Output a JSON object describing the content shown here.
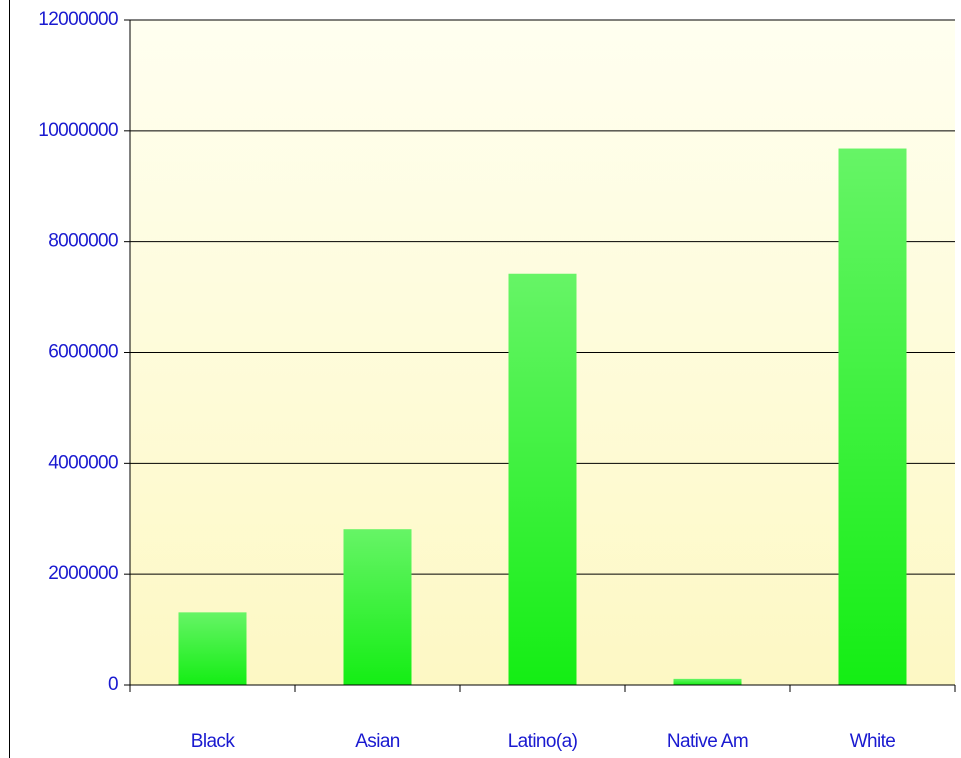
{
  "chart_data": {
    "type": "bar",
    "categories": [
      "Black",
      "Asian",
      "Latino(a)",
      "Native Am",
      "White"
    ],
    "values": [
      1310000,
      2810000,
      7420000,
      110000,
      9680000
    ],
    "color": "#14ee14",
    "ylim": [
      0,
      12000000
    ],
    "yticks": [
      0,
      2000000,
      4000000,
      6000000,
      8000000,
      10000000,
      12000000
    ],
    "grid": true
  }
}
